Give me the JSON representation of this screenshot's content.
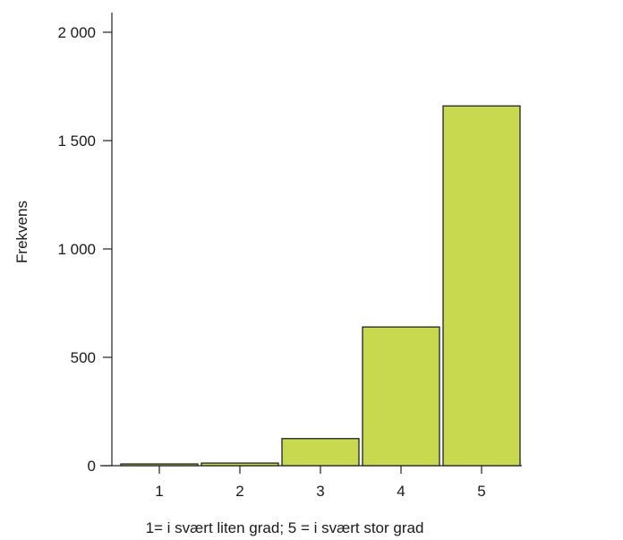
{
  "chart_data": {
    "type": "bar",
    "categories": [
      "1",
      "2",
      "3",
      "4",
      "5"
    ],
    "values": [
      8,
      12,
      125,
      640,
      1660
    ],
    "title": "",
    "xlabel": "1= i svært liten grad; 5 = i svært stor grad",
    "ylabel": "Frekvens",
    "ylim": [
      0,
      2000
    ],
    "yticks": [
      0,
      500,
      1000,
      1500,
      2000
    ],
    "ytick_labels": [
      "0",
      "500",
      "1 000",
      "1 500",
      "2 000"
    ],
    "bar_color": "#c8d84f",
    "grid": false
  }
}
